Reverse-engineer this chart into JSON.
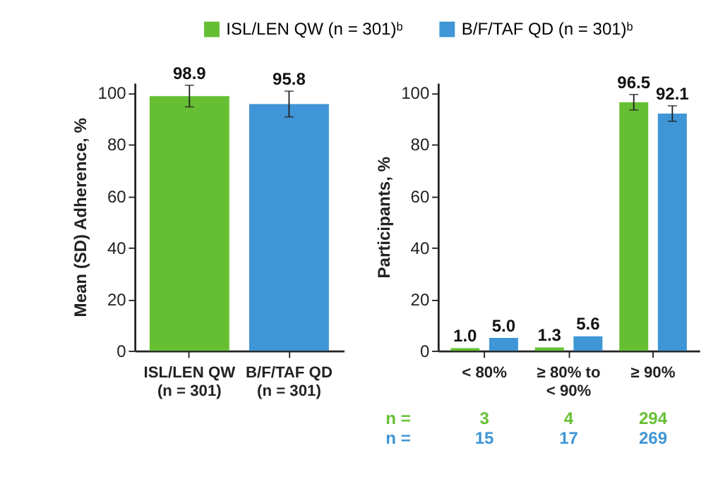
{
  "chart_data": [
    {
      "type": "bar",
      "ylabel": "Mean (SD) Adherence, %",
      "categories": [
        "ISL/LEN QW\n(n = 301)",
        "B/F/TAF QD\n(n = 301)"
      ],
      "values": [
        98.9,
        95.8
      ],
      "value_labels": [
        "98.9",
        "95.8"
      ],
      "errors": [
        4.2,
        5.0
      ],
      "colors": [
        "#66bf33",
        "#3f95d6"
      ],
      "ylim": [
        0,
        104
      ],
      "yticks": [
        0,
        20,
        40,
        60,
        80,
        100
      ],
      "grid": false,
      "legend": false
    },
    {
      "type": "bar",
      "ylabel": "Participants, %",
      "categories": [
        "< 80%",
        "≥ 80% to\n< 90%",
        "≥ 90%"
      ],
      "series": [
        {
          "name": "ISL/LEN QW (n = 301)ᵇ",
          "color": "#66bf33",
          "values": [
            1.0,
            1.3,
            96.5
          ],
          "value_labels": [
            "1.0",
            "1.3",
            "96.5"
          ],
          "errors": [
            null,
            null,
            3.0
          ]
        },
        {
          "name": "B/F/TAF QD (n = 301)ᵇ",
          "color": "#3f95d6",
          "values": [
            5.0,
            5.6,
            92.1
          ],
          "value_labels": [
            "5.0",
            "5.6",
            "92.1"
          ],
          "errors": [
            null,
            null,
            3.0
          ]
        }
      ],
      "ylim": [
        0,
        104
      ],
      "yticks": [
        0,
        20,
        40,
        60,
        80,
        100
      ],
      "grid": false,
      "legend": "top",
      "annotations": [
        "n =",
        "3",
        "4",
        "294",
        "n =",
        "15",
        "17",
        "269"
      ]
    }
  ]
}
